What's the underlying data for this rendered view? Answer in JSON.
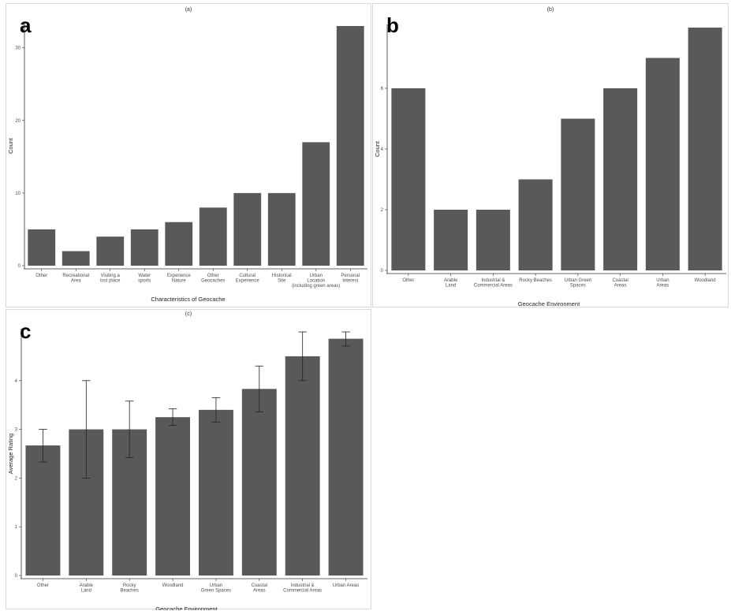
{
  "panels": {
    "a": {
      "letter": "a",
      "caption": "(a)"
    },
    "b": {
      "letter": "b",
      "caption": "(b)"
    },
    "c": {
      "letter": "c",
      "caption": "(c)"
    }
  },
  "colors": {
    "bar": "#595959",
    "axis": "#333333",
    "errorbar": "#222222"
  },
  "chart_data": [
    {
      "id": "a",
      "type": "bar",
      "title": "",
      "xlabel": "Characteristics of Geocache",
      "ylabel": "Count",
      "categories": [
        [
          "Other"
        ],
        [
          "Recreational",
          "Area"
        ],
        [
          "Visiting a",
          "lost place"
        ],
        [
          "Water",
          "sports"
        ],
        [
          "Experience",
          "Nature"
        ],
        [
          "Other",
          "Geocaches"
        ],
        [
          "Cultural",
          "Experience"
        ],
        [
          "Historical",
          "Site"
        ],
        [
          "Urban",
          "Location",
          "(including green areas)"
        ],
        [
          "Personal",
          "Interest"
        ]
      ],
      "values": [
        5,
        2,
        4,
        5,
        6,
        8,
        10,
        10,
        17,
        33
      ],
      "yticks": [
        0,
        10,
        20,
        30
      ],
      "ylim": [
        0,
        33
      ],
      "grid": false
    },
    {
      "id": "b",
      "type": "bar",
      "title": "",
      "xlabel": "Geocache Environment",
      "ylabel": "Count",
      "categories": [
        [
          "Other"
        ],
        [
          "Arable",
          "Land"
        ],
        [
          "Industrial &",
          "Commercial Areas"
        ],
        [
          "Rocky Beaches"
        ],
        [
          "Urban Green",
          "Spaces"
        ],
        [
          "Coastal",
          "Areas"
        ],
        [
          "Urban",
          "Areas"
        ],
        [
          "Woodland"
        ]
      ],
      "values": [
        6,
        2,
        2,
        3,
        5,
        6,
        7,
        8
      ],
      "yticks": [
        0,
        2,
        4,
        6
      ],
      "ylim": [
        0,
        8
      ],
      "grid": false
    },
    {
      "id": "c",
      "type": "bar",
      "title": "",
      "xlabel": "Geocache Environment",
      "ylabel": "Average Rating",
      "categories": [
        [
          "Other"
        ],
        [
          "Arable",
          "Land"
        ],
        [
          "Rocky",
          "Beaches"
        ],
        [
          "Woodland"
        ],
        [
          "Urban",
          "Green Spaces"
        ],
        [
          "Coastal",
          "Areas"
        ],
        [
          "Industrial &",
          "Commercial Areas"
        ],
        [
          "Urban Areas"
        ]
      ],
      "values": [
        2.67,
        3.0,
        3.0,
        3.25,
        3.4,
        3.83,
        4.5,
        4.86
      ],
      "error_low": [
        2.33,
        2.0,
        2.42,
        3.08,
        3.15,
        3.36,
        4.0,
        4.71
      ],
      "error_high": [
        3.0,
        4.0,
        3.58,
        3.42,
        3.65,
        4.3,
        5.0,
        5.0
      ],
      "yticks": [
        0,
        1,
        2,
        3,
        4
      ],
      "ylim": [
        0,
        5
      ],
      "grid": false
    }
  ]
}
